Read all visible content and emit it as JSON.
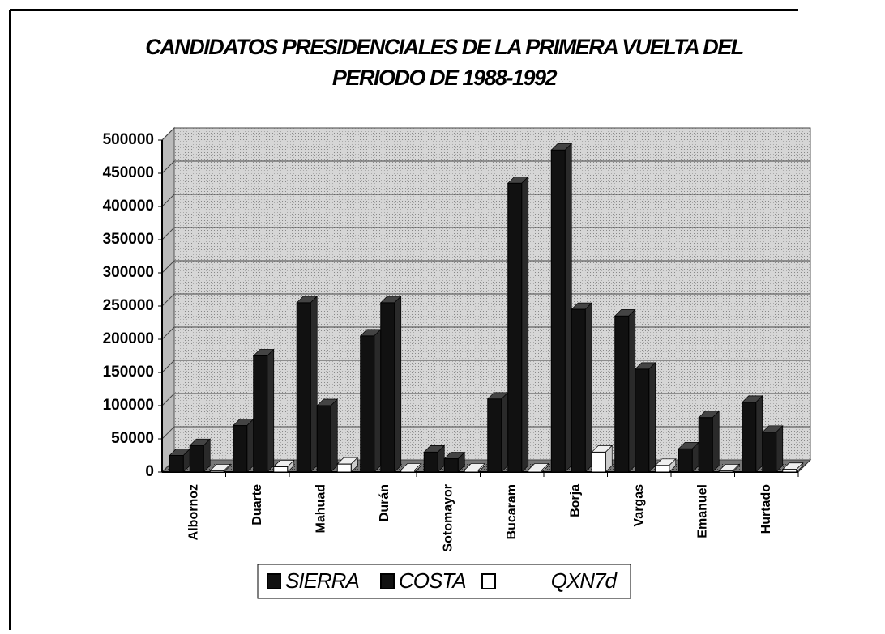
{
  "chart_data": {
    "type": "bar3d",
    "title": "CANDIDATOS PRESIDENCIALES DE LA PRIMERA VUELTA DEL",
    "subtitle": "PERIODO DE 1988-1992",
    "categories": [
      "Albornoz",
      "Duarte",
      "Mahuad",
      "Durán",
      "Sotomayor",
      "Bucaram",
      "Borja",
      "Vargas",
      "Emanuel",
      "Hurtado"
    ],
    "series": [
      {
        "name": "SIERRA",
        "color": "#111111",
        "values": [
          25000,
          70000,
          255000,
          205000,
          30000,
          110000,
          485000,
          235000,
          35000,
          105000
        ]
      },
      {
        "name": "COSTA",
        "color": "#111111",
        "values": [
          40000,
          175000,
          100000,
          255000,
          20000,
          435000,
          245000,
          155000,
          82000,
          60000
        ]
      },
      {
        "name": "QXN7d",
        "color": "#ffffff",
        "values": [
          2000,
          8000,
          12000,
          3000,
          3000,
          3000,
          30000,
          10000,
          2000,
          4000
        ]
      }
    ],
    "ylim": [
      0,
      500000
    ],
    "yticks": [
      0,
      50000,
      100000,
      150000,
      200000,
      250000,
      300000,
      350000,
      400000,
      450000,
      500000
    ],
    "grid": true
  }
}
